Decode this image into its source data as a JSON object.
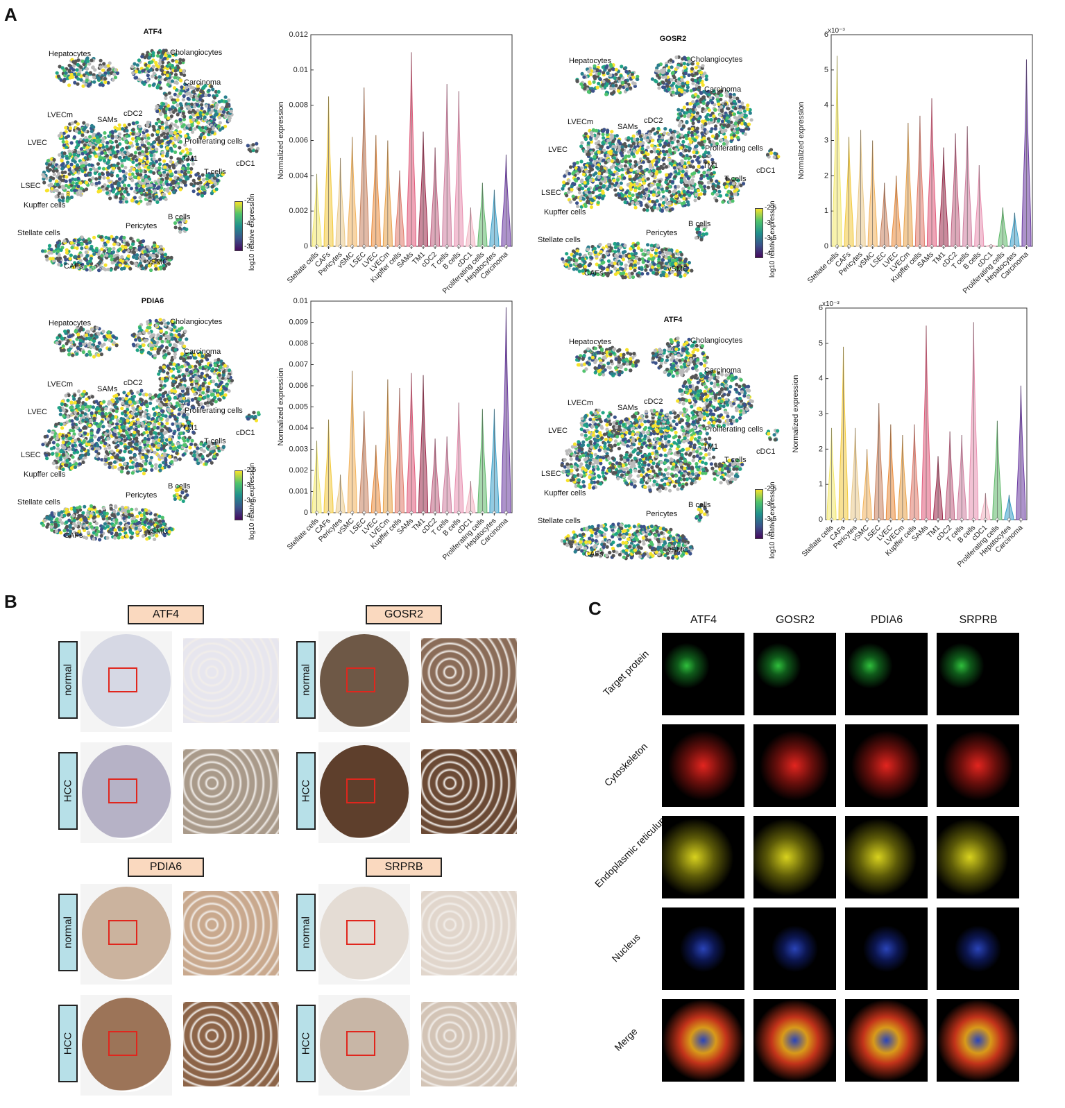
{
  "panels": {
    "a": "A",
    "b": "B",
    "c": "C"
  },
  "cell_types_violin_order": [
    "Stellate cells",
    "CAFs",
    "Pericytes",
    "vSMC",
    "LSEC",
    "LVEC",
    "LVECm",
    "Kupffer cells",
    "SAMs",
    "TM1",
    "cDC2",
    "T cells",
    "B cells",
    "cDC1",
    "Proliferating cells",
    "Hepatocytes",
    "Carcinoma"
  ],
  "cluster_labels": [
    "Hepatocytes",
    "Cholangiocytes",
    "Carcinoma",
    "LVECm",
    "cDC2",
    "SAMs",
    "LVEC",
    "Proliferating cells",
    "cDC1",
    "TM1",
    "T cells",
    "LSEC",
    "Kupffer cells",
    "B cells",
    "Pericytes",
    "Stellate cells",
    "CAFs",
    "vSMC"
  ],
  "umaps": [
    {
      "title": "ATF4",
      "cbar_ticks": [
        "-2",
        "-4",
        "-3"
      ],
      "cbar_title": "log10 relative expression"
    },
    {
      "title": "GOSR2",
      "cbar_ticks": [
        "-2.5",
        "-3",
        "-3.5",
        "-4"
      ],
      "cbar_title": "log10 relative expression"
    },
    {
      "title": "PDIA6",
      "cbar_ticks": [
        "-2.5",
        "-3",
        "-3.5",
        "-4"
      ],
      "cbar_title": "log10 relative expression"
    },
    {
      "title": "ATF4",
      "cbar_ticks": [
        "-2.5",
        "-3",
        "-3.5",
        "-4"
      ],
      "cbar_title": "log10 relative expression"
    }
  ],
  "violins": {
    "ylabel": "Normalized expression",
    "exp_label": "x10⁻³"
  },
  "chart_data": [
    {
      "type": "violin",
      "ylabel": "Normalized expression",
      "ylim": [
        0,
        0.012
      ],
      "yticks": [
        "0",
        "0.002",
        "0.004",
        "0.006",
        "0.008",
        "0.01",
        "0.012"
      ],
      "categories": [
        "Stellate cells",
        "CAFs",
        "Pericytes",
        "vSMC",
        "LSEC",
        "LVEC",
        "LVECm",
        "Kupffer cells",
        "SAMs",
        "TM1",
        "cDC2",
        "T cells",
        "B cells",
        "cDC1",
        "Proliferating cells",
        "Hepatocytes",
        "Carcinoma"
      ],
      "max": [
        0.0041,
        0.0085,
        0.005,
        0.0062,
        0.009,
        0.0063,
        0.006,
        0.0043,
        0.011,
        0.0065,
        0.0056,
        0.0092,
        0.0088,
        0.0022,
        0.0036,
        0.0032,
        0.0052
      ],
      "colors": [
        "#f2e86b",
        "#f2c93c",
        "#e9c98a",
        "#f2b35c",
        "#c8825e",
        "#e98a3a",
        "#e8a24a",
        "#e07a6a",
        "#e05a7a",
        "#9c2a4a",
        "#c06080",
        "#d080a0",
        "#e890b0",
        "#f0b0c0",
        "#5fb86a",
        "#3a9fc8",
        "#6a3aa0"
      ]
    },
    {
      "type": "violin",
      "ylabel": "Normalized expression",
      "ylim": [
        0,
        6
      ],
      "unit": "x10⁻³",
      "yticks": [
        "0",
        "1",
        "2",
        "3",
        "4",
        "5",
        "6"
      ],
      "categories": [
        "Stellate cells",
        "CAFs",
        "Pericytes",
        "vSMC",
        "LSEC",
        "LVEC",
        "LVECm",
        "Kupffer cells",
        "SAMs",
        "TM1",
        "cDC2",
        "T cells",
        "B cells",
        "cDC1",
        "Proliferating cells",
        "Hepatocytes",
        "Carcinoma"
      ],
      "max": [
        5.4,
        3.1,
        3.3,
        3.0,
        1.8,
        2.0,
        3.5,
        3.7,
        4.2,
        2.8,
        3.2,
        3.4,
        2.3,
        0.05,
        1.1,
        0.95,
        5.3
      ],
      "colors": [
        "#f2e86b",
        "#f2c93c",
        "#e9c98a",
        "#f2b35c",
        "#c8825e",
        "#e98a3a",
        "#e8a24a",
        "#e07a6a",
        "#e05a7a",
        "#9c2a4a",
        "#c06080",
        "#d080a0",
        "#e890b0",
        "#f0b0c0",
        "#5fb86a",
        "#3a9fc8",
        "#6a3aa0"
      ]
    },
    {
      "type": "violin",
      "ylabel": "Normalized expression",
      "ylim": [
        0,
        0.01
      ],
      "yticks": [
        "0",
        "0.001",
        "0.002",
        "0.003",
        "0.004",
        "0.005",
        "0.006",
        "0.007",
        "0.008",
        "0.009",
        "0.01"
      ],
      "categories": [
        "Stellate cells",
        "CAFs",
        "Pericytes",
        "vSMC",
        "LSEC",
        "LVEC",
        "LVECm",
        "Kupffer cells",
        "SAMs",
        "TM1",
        "cDC2",
        "T cells",
        "B cells",
        "cDC1",
        "Proliferating cells",
        "Hepatocytes",
        "Carcinoma"
      ],
      "max": [
        0.0034,
        0.0044,
        0.0018,
        0.0067,
        0.0048,
        0.0032,
        0.0063,
        0.0059,
        0.0066,
        0.0065,
        0.0035,
        0.0036,
        0.0052,
        0.0015,
        0.0049,
        0.0049,
        0.0097
      ],
      "colors": [
        "#f2e86b",
        "#f2c93c",
        "#e9c98a",
        "#f2b35c",
        "#c8825e",
        "#e98a3a",
        "#e8a24a",
        "#e07a6a",
        "#e05a7a",
        "#9c2a4a",
        "#c06080",
        "#d080a0",
        "#e890b0",
        "#f0b0c0",
        "#5fb86a",
        "#3a9fc8",
        "#6a3aa0"
      ]
    },
    {
      "type": "violin",
      "ylabel": "Normalized expression",
      "ylim": [
        0,
        6
      ],
      "unit": "x10⁻³",
      "yticks": [
        "0",
        "1",
        "2",
        "3",
        "4",
        "5",
        "6"
      ],
      "categories": [
        "Stellate cells",
        "CAFs",
        "Pericytes",
        "vSMC",
        "LSEC",
        "LVEC",
        "LVECm",
        "Kupffer cells",
        "SAMs",
        "TM1",
        "cDC2",
        "T cells",
        "B cells",
        "cDC1",
        "Proliferating cells",
        "Hepatocytes",
        "Carcinoma"
      ],
      "max": [
        2.6,
        4.9,
        2.6,
        2.0,
        3.3,
        2.7,
        2.4,
        2.7,
        5.5,
        1.8,
        2.5,
        2.4,
        5.6,
        0.75,
        2.8,
        0.7,
        3.8
      ],
      "colors": [
        "#f2e86b",
        "#f2c93c",
        "#e9c98a",
        "#f2b35c",
        "#c8825e",
        "#e98a3a",
        "#e8a24a",
        "#e07a6a",
        "#e05a7a",
        "#9c2a4a",
        "#c06080",
        "#d080a0",
        "#e890b0",
        "#f0b0c0",
        "#5fb86a",
        "#3a9fc8",
        "#6a3aa0"
      ]
    }
  ],
  "ihc": {
    "genes": [
      "ATF4",
      "GOSR2",
      "PDIA6",
      "SRPRB"
    ],
    "normal": "normal",
    "hcc": "HCC"
  },
  "if_panel": {
    "columns": [
      "ATF4",
      "GOSR2",
      "PDIA6",
      "SRPRB"
    ],
    "rows": [
      "Target protein",
      "Cytoskeleton",
      "Endoplasmic reticulum",
      "Nucleus",
      "Merge"
    ]
  }
}
